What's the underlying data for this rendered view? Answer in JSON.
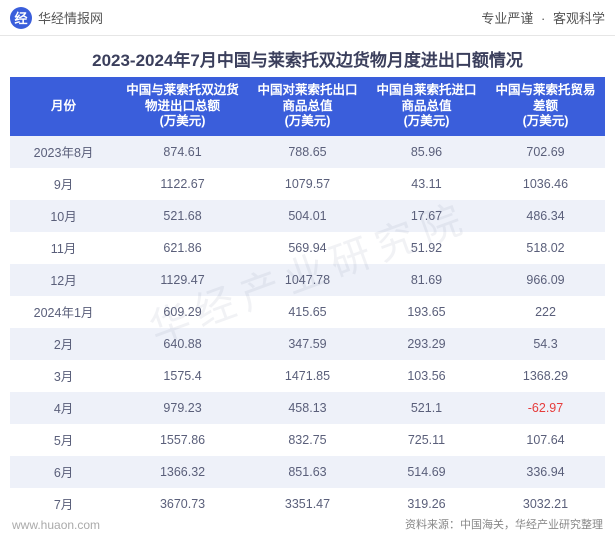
{
  "topbar": {
    "brand_glyph": "经",
    "brand_text": "华经情报网",
    "right_a": "专业严谨",
    "right_sep": "·",
    "right_b": "客观科学"
  },
  "title": "2023-2024年7月中国与莱索托双边货物月度进出口额情况",
  "watermark": "华经产业研究院",
  "table": {
    "header_bg": "#3a5edb",
    "header_fg": "#ffffff",
    "row_even_bg": "#eef1f9",
    "row_odd_bg": "#ffffff",
    "neg_color": "#e63c3c",
    "col_widths_pct": [
      18,
      22,
      20,
      20,
      20
    ],
    "columns": [
      "月份",
      "中国与莱索托双边货物进出口总额\n(万美元)",
      "中国对莱索托出口商品总值\n(万美元)",
      "中国自莱索托进口商品总值\n(万美元)",
      "中国与莱索托贸易差额\n(万美元)"
    ],
    "rows": [
      [
        "2023年8月",
        "874.61",
        "788.65",
        "85.96",
        "702.69"
      ],
      [
        "9月",
        "1122.67",
        "1079.57",
        "43.11",
        "1036.46"
      ],
      [
        "10月",
        "521.68",
        "504.01",
        "17.67",
        "486.34"
      ],
      [
        "11月",
        "621.86",
        "569.94",
        "51.92",
        "518.02"
      ],
      [
        "12月",
        "1129.47",
        "1047.78",
        "81.69",
        "966.09"
      ],
      [
        "2024年1月",
        "609.29",
        "415.65",
        "193.65",
        "222"
      ],
      [
        "2月",
        "640.88",
        "347.59",
        "293.29",
        "54.3"
      ],
      [
        "3月",
        "1575.4",
        "1471.85",
        "103.56",
        "1368.29"
      ],
      [
        "4月",
        "979.23",
        "458.13",
        "521.1",
        "-62.97"
      ],
      [
        "5月",
        "1557.86",
        "832.75",
        "725.11",
        "107.64"
      ],
      [
        "6月",
        "1366.32",
        "851.63",
        "514.69",
        "336.94"
      ],
      [
        "7月",
        "3670.73",
        "3351.47",
        "319.26",
        "3032.21"
      ]
    ]
  },
  "footer": {
    "left": "www.huaon.com",
    "right": "资料来源：中国海关，华经产业研究整理"
  }
}
